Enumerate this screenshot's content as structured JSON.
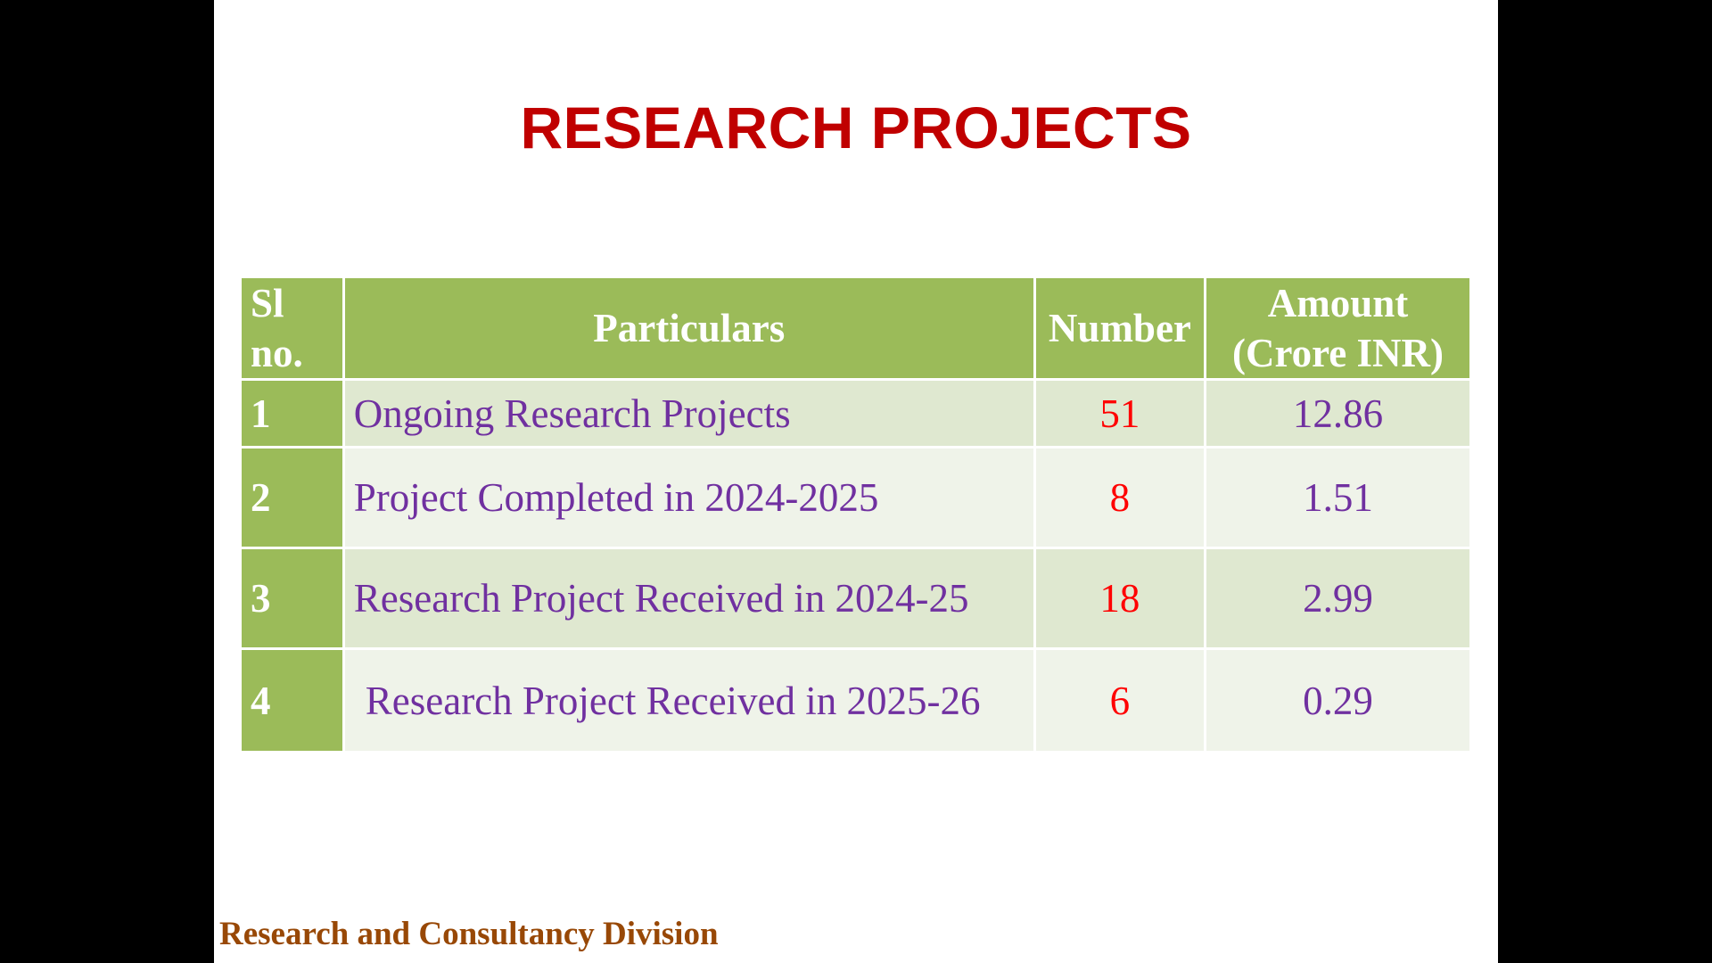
{
  "slide": {
    "title": "RESEARCH PROJECTS",
    "footer": "Research and Consultancy Division"
  },
  "table": {
    "headers": {
      "sl_line1": "Sl",
      "sl_line2": "no.",
      "particulars": "Particulars",
      "number": "Number",
      "amount_line1": "Amount",
      "amount_line2": "(Crore INR)"
    },
    "rows": [
      {
        "sl": "1",
        "particulars": "Ongoing Research Projects",
        "number": "51",
        "amount": "12.86"
      },
      {
        "sl": "2",
        "particulars": "Project Completed in 2024-2025",
        "number": "8",
        "amount": "1.51"
      },
      {
        "sl": "3",
        "particulars": "Research Project Received in 2024-25",
        "number": "18",
        "amount": "2.99"
      },
      {
        "sl": "4",
        "particulars": "Research Project Received in 2025-26",
        "number": "6",
        "amount": "0.29"
      }
    ]
  },
  "colors": {
    "title": "#c00000",
    "header_bg": "#9bbb59",
    "row_odd_bg": "#dfe8d0",
    "row_even_bg": "#eff3e9",
    "particulars_text": "#7030a0",
    "number_text": "#ff0000",
    "footer_text": "#984806"
  }
}
